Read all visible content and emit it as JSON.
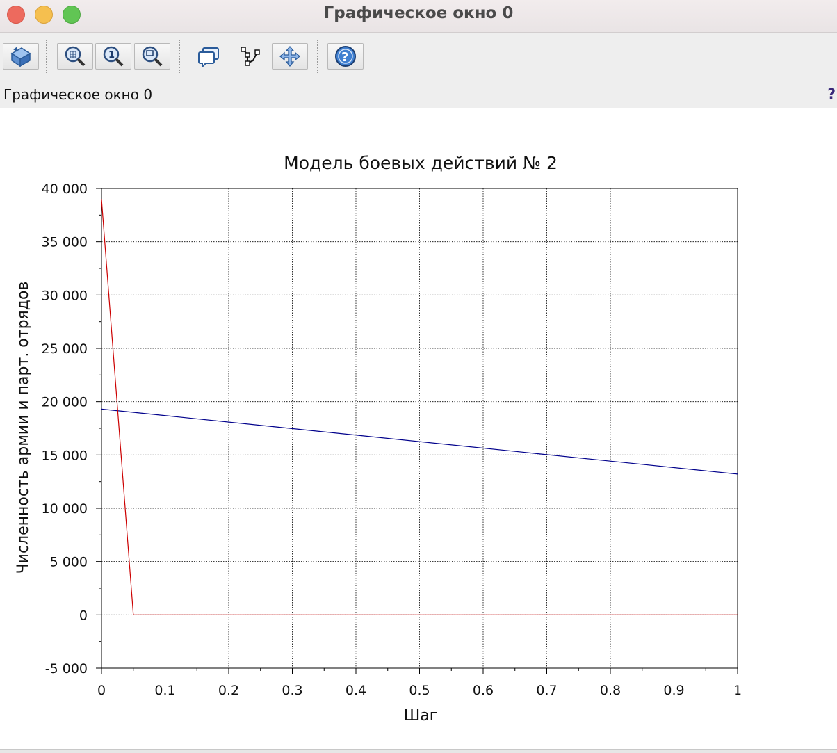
{
  "window": {
    "title": "Графическое окно 0",
    "figure_label": "Графическое окно 0",
    "help_mark": "?"
  },
  "toolbar": {
    "buttons": [
      {
        "name": "rotate-button",
        "icon": "rotate-3d-icon"
      },
      {
        "name": "zoom-in-button",
        "icon": "zoom-in-icon"
      },
      {
        "name": "zoom-original-button",
        "icon": "zoom-reset-icon"
      },
      {
        "name": "zoom-area-button",
        "icon": "zoom-area-icon"
      },
      {
        "name": "datatip-button",
        "icon": "datatip-icon"
      },
      {
        "name": "edit-curve-button",
        "icon": "curve-edit-icon"
      },
      {
        "name": "pan-button",
        "icon": "pan-icon"
      },
      {
        "name": "help-button",
        "icon": "help-icon"
      }
    ]
  },
  "chart_data": {
    "type": "line",
    "title": "Модель боевых действий № 2",
    "xlabel": "Шаг",
    "ylabel": "Численность армии и парт. отрядов",
    "xlim": [
      0,
      1
    ],
    "ylim": [
      -5000,
      40000
    ],
    "grid": true,
    "x_ticks": [
      "0",
      "0.1",
      "0.2",
      "0.3",
      "0.4",
      "0.5",
      "0.6",
      "0.7",
      "0.8",
      "0.9",
      "1"
    ],
    "y_ticks": [
      "-5 000",
      "0",
      "5 000",
      "10 000",
      "15 000",
      "20 000",
      "25 000",
      "30 000",
      "35 000",
      "40 000"
    ],
    "series": [
      {
        "color": "#00008b",
        "x": [
          0,
          1
        ],
        "y": [
          19300,
          13200
        ]
      },
      {
        "color": "#cc0000",
        "x": [
          0,
          0.05,
          1
        ],
        "y": [
          39000,
          0,
          0
        ]
      }
    ]
  }
}
